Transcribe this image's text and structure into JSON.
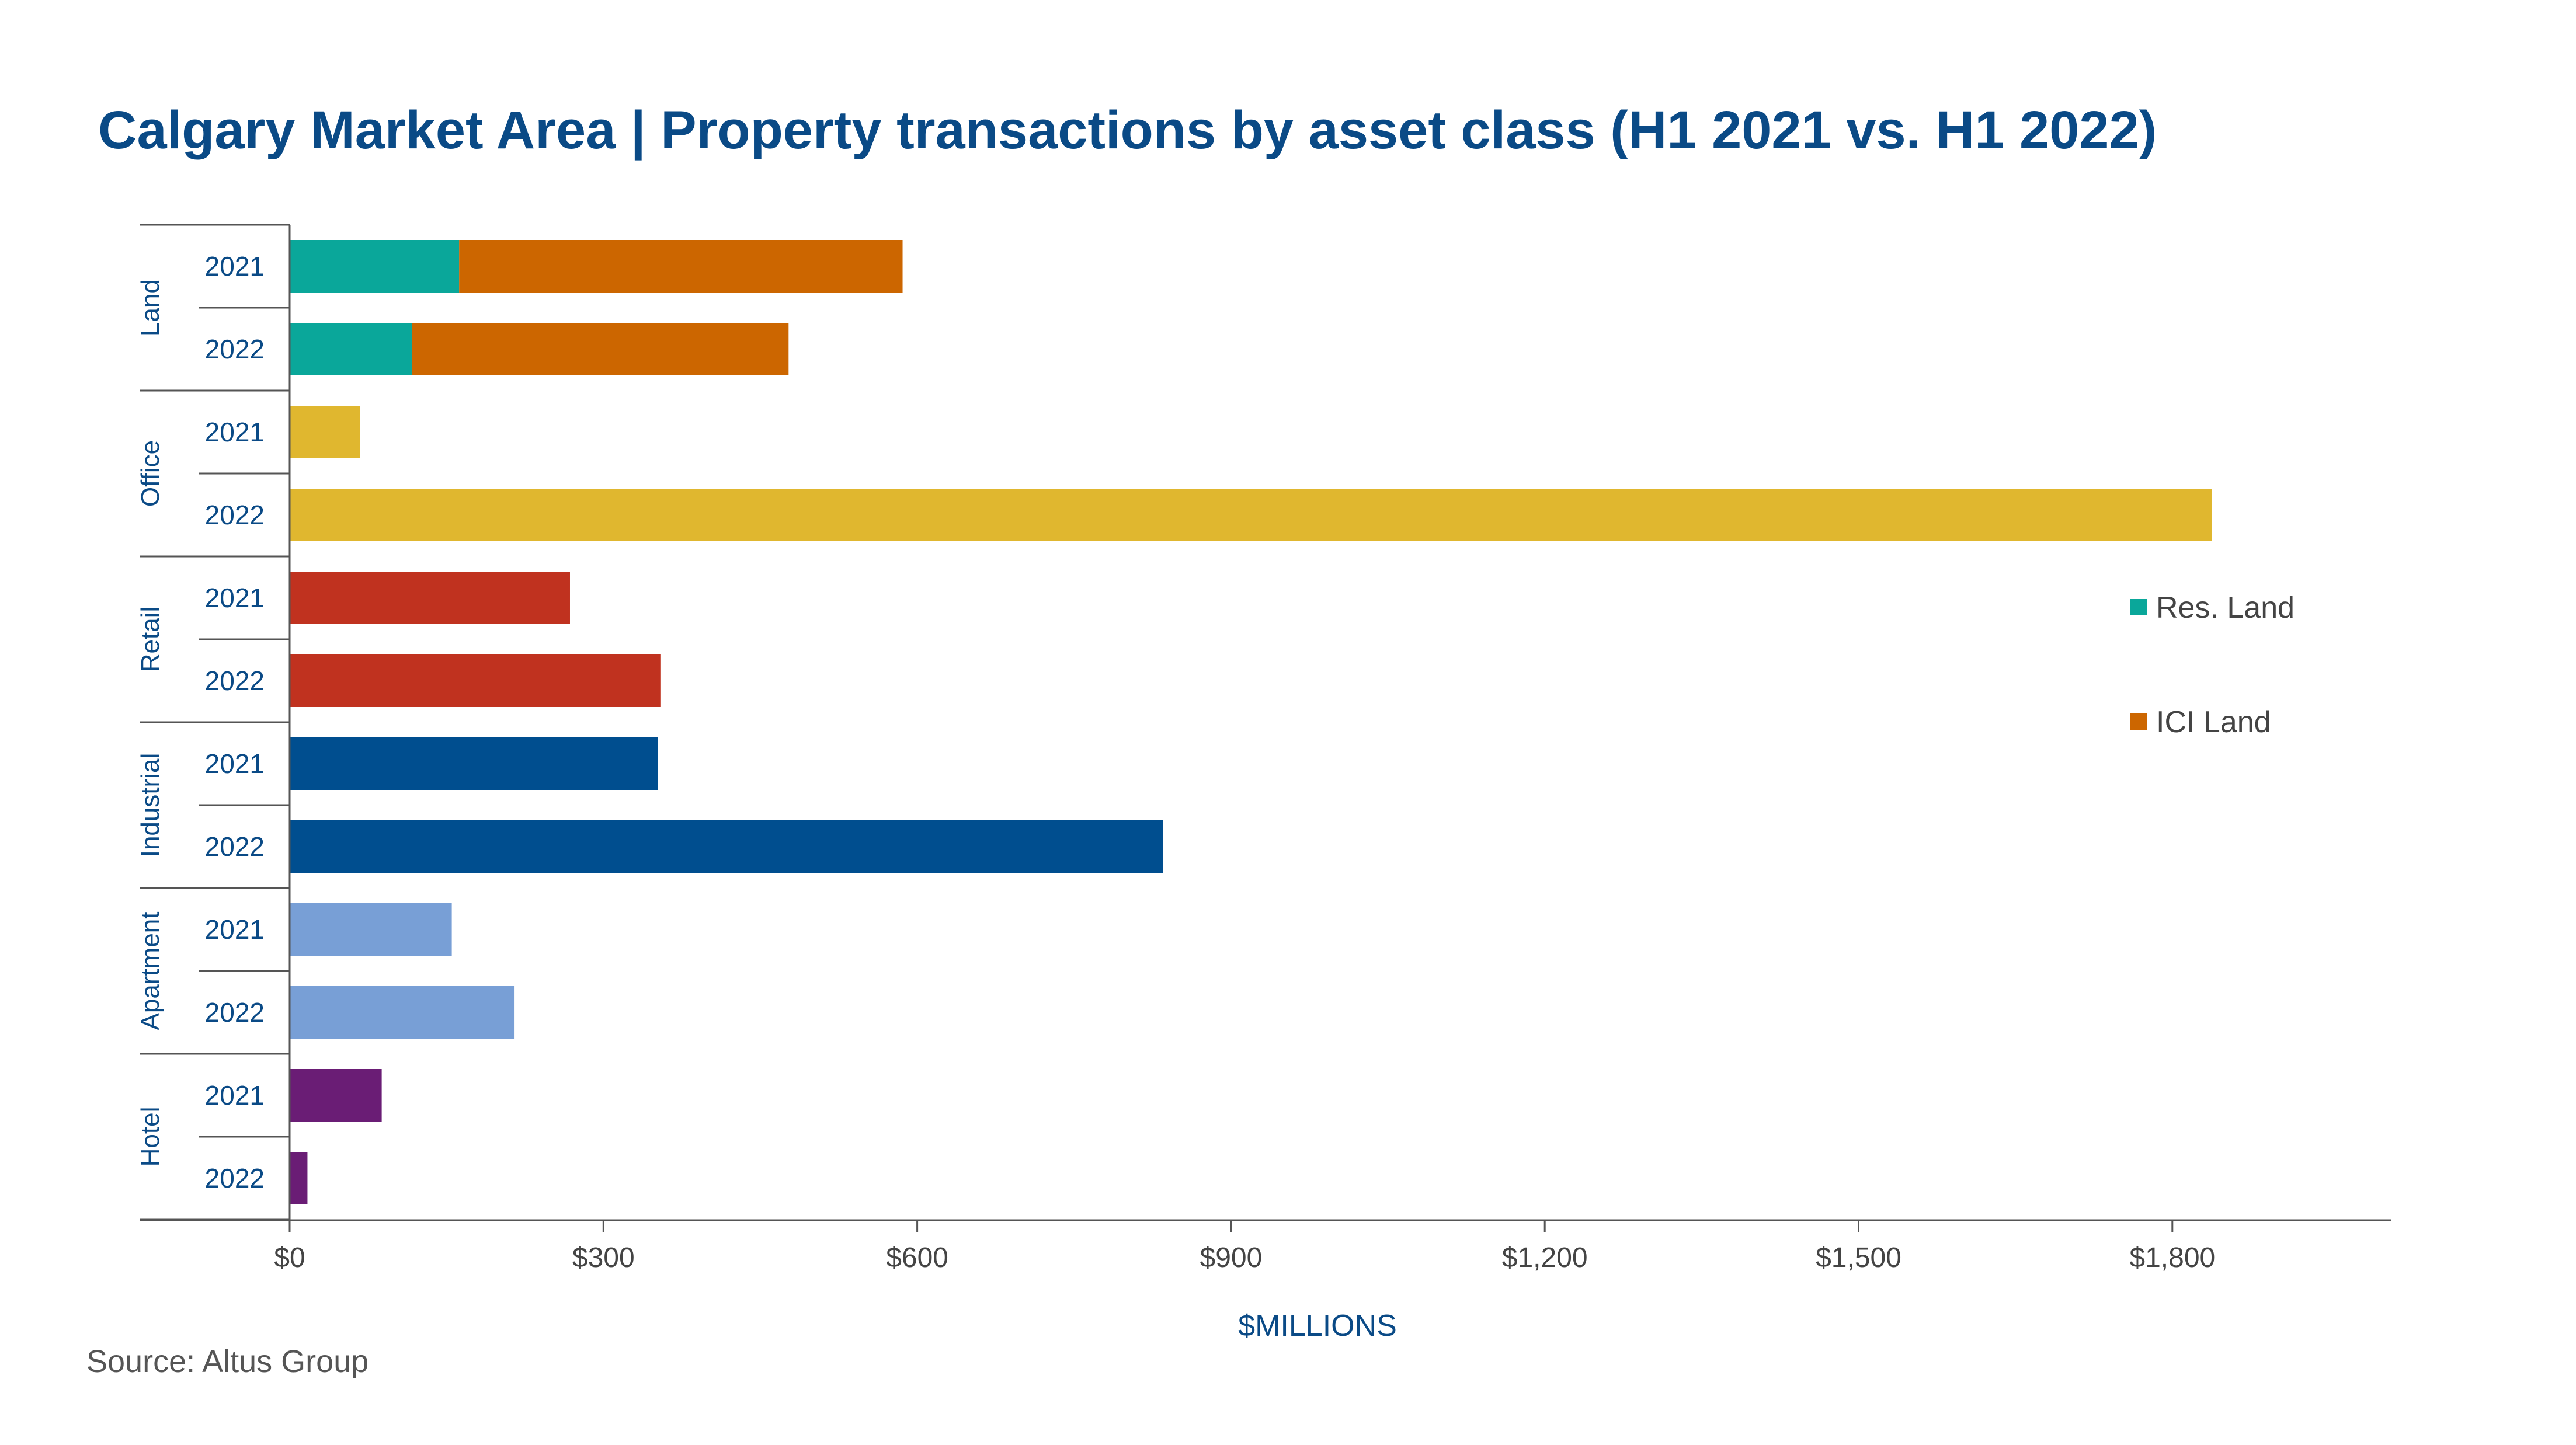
{
  "chart_data": {
    "type": "bar",
    "orientation": "horizontal",
    "stacked": true,
    "title": "Calgary Market Area | Property transactions by asset class (H1 2021 vs. H1 2022)",
    "xlabel": "$MILLIONS",
    "xlim": [
      0,
      2000
    ],
    "xticks": [
      0,
      300,
      600,
      900,
      1200,
      1500,
      1800
    ],
    "xtick_labels": [
      "$0",
      "$300",
      "$600",
      "$900",
      "$1,200",
      "$1,500",
      "$1,800"
    ],
    "groups": [
      {
        "name": "Land",
        "rows": [
          {
            "year": "2021",
            "segments": [
              {
                "series": "Res. Land",
                "value": 162,
                "color": "#0aa79a"
              },
              {
                "series": "ICI Land",
                "value": 424,
                "color": "#cc6600"
              }
            ]
          },
          {
            "year": "2022",
            "segments": [
              {
                "series": "Res. Land",
                "value": 117,
                "color": "#0aa79a"
              },
              {
                "series": "ICI Land",
                "value": 360,
                "color": "#cc6600"
              }
            ]
          }
        ]
      },
      {
        "name": "Office",
        "rows": [
          {
            "year": "2021",
            "segments": [
              {
                "series": "Office",
                "value": 67,
                "color": "#e0b72f"
              }
            ]
          },
          {
            "year": "2022",
            "segments": [
              {
                "series": "Office",
                "value": 1838,
                "color": "#e0b72f"
              }
            ]
          }
        ]
      },
      {
        "name": "Retail",
        "rows": [
          {
            "year": "2021",
            "segments": [
              {
                "series": "Retail",
                "value": 268,
                "color": "#c0321f"
              }
            ]
          },
          {
            "year": "2022",
            "segments": [
              {
                "series": "Retail",
                "value": 355,
                "color": "#c0321f"
              }
            ]
          }
        ]
      },
      {
        "name": "Industrial",
        "rows": [
          {
            "year": "2021",
            "segments": [
              {
                "series": "Industrial",
                "value": 352,
                "color": "#004e8f"
              }
            ]
          },
          {
            "year": "2022",
            "segments": [
              {
                "series": "Industrial",
                "value": 835,
                "color": "#004e8f"
              }
            ]
          }
        ]
      },
      {
        "name": "Apartment",
        "rows": [
          {
            "year": "2021",
            "segments": [
              {
                "series": "Apartment",
                "value": 155,
                "color": "#789fd6"
              }
            ]
          },
          {
            "year": "2022",
            "segments": [
              {
                "series": "Apartment",
                "value": 215,
                "color": "#789fd6"
              }
            ]
          }
        ]
      },
      {
        "name": "Hotel",
        "rows": [
          {
            "year": "2021",
            "segments": [
              {
                "series": "Hotel",
                "value": 88,
                "color": "#6a1d75"
              }
            ]
          },
          {
            "year": "2022",
            "segments": [
              {
                "series": "Hotel",
                "value": 17,
                "color": "#6a1d75"
              }
            ]
          }
        ]
      }
    ],
    "legend": {
      "placement": "right",
      "items": [
        {
          "label": "Res. Land",
          "color": "#0aa79a"
        },
        {
          "label": "ICI Land",
          "color": "#cc6600"
        }
      ]
    },
    "source": "Source:  Altus Group"
  }
}
